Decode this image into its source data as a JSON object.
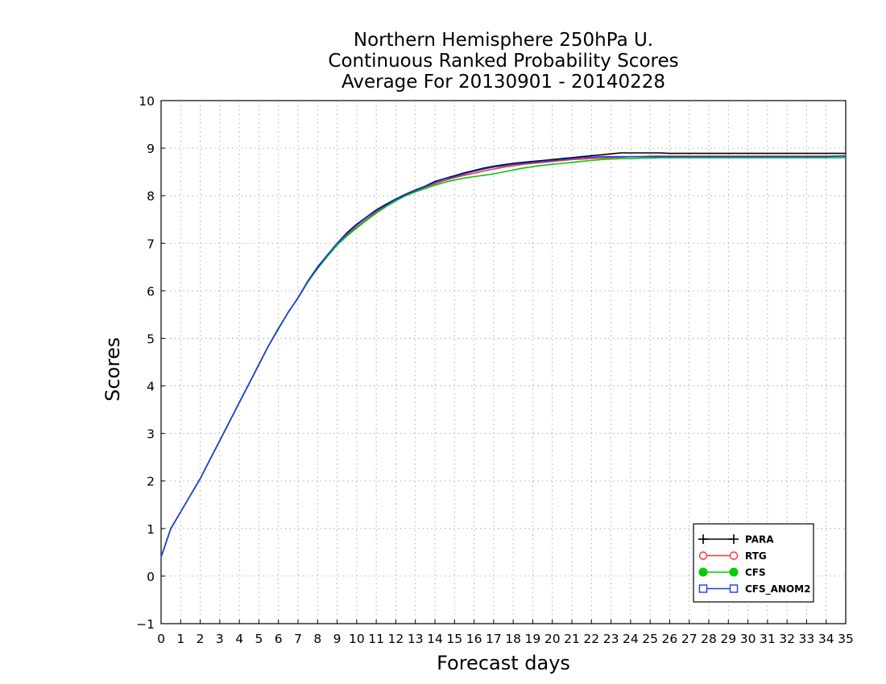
{
  "chart_data": {
    "type": "line",
    "title": [
      "Northern Hemisphere 250hPa U.",
      "Continuous Ranked Probability Scores",
      "Average For 20130901 - 20140228"
    ],
    "xlabel": "Forecast days",
    "ylabel": "Scores",
    "xlim": [
      0,
      35
    ],
    "ylim": [
      -1,
      10
    ],
    "xticks": [
      0,
      1,
      2,
      3,
      4,
      5,
      6,
      7,
      8,
      9,
      10,
      11,
      12,
      13,
      14,
      15,
      16,
      17,
      18,
      19,
      20,
      21,
      22,
      23,
      24,
      25,
      26,
      27,
      28,
      29,
      30,
      31,
      32,
      33,
      34,
      35
    ],
    "yticks": [
      -1,
      0,
      1,
      2,
      3,
      4,
      5,
      6,
      7,
      8,
      9,
      10
    ],
    "ytick_labels": [
      "−1",
      "0",
      "1",
      "2",
      "3",
      "4",
      "5",
      "6",
      "7",
      "8",
      "9",
      "10"
    ],
    "grid": true,
    "legend_position": "bottom-right",
    "x": [
      0,
      0.5,
      1,
      1.5,
      2,
      2.5,
      3,
      3.5,
      4,
      4.5,
      5,
      5.5,
      6,
      6.5,
      7,
      7.5,
      8,
      8.5,
      9,
      9.5,
      10,
      10.5,
      11,
      11.5,
      12,
      12.5,
      13,
      13.5,
      14,
      14.5,
      15,
      15.5,
      16,
      16.5,
      17,
      17.5,
      18,
      18.5,
      19,
      19.5,
      20,
      20.5,
      21,
      21.5,
      22,
      22.5,
      23,
      23.5,
      24,
      24.5,
      25,
      25.5,
      26,
      26.5,
      27,
      27.5,
      28,
      28.5,
      29,
      29.5,
      30,
      30.5,
      31,
      31.5,
      32,
      32.5,
      33,
      33.5,
      34,
      34.5,
      35
    ],
    "series": [
      {
        "name": "PARA",
        "color": "#000000",
        "marker": "plus",
        "values": [
          0.4,
          1.0,
          1.35,
          1.7,
          2.05,
          2.45,
          2.85,
          3.25,
          3.65,
          4.05,
          4.45,
          4.85,
          5.2,
          5.55,
          5.85,
          6.2,
          6.5,
          6.75,
          7.0,
          7.22,
          7.4,
          7.55,
          7.7,
          7.82,
          7.93,
          8.03,
          8.12,
          8.2,
          8.3,
          8.36,
          8.42,
          8.48,
          8.53,
          8.58,
          8.62,
          8.65,
          8.68,
          8.7,
          8.72,
          8.74,
          8.76,
          8.78,
          8.8,
          8.82,
          8.84,
          8.86,
          8.88,
          8.9,
          8.9,
          8.9,
          8.9,
          8.9,
          8.89,
          8.89,
          8.89,
          8.89,
          8.89,
          8.89,
          8.89,
          8.89,
          8.89,
          8.89,
          8.89,
          8.89,
          8.89,
          8.89,
          8.89,
          8.89,
          8.89,
          8.89,
          8.89
        ]
      },
      {
        "name": "RTG",
        "color": "#ff3030",
        "marker": "open-circle",
        "values": [
          0.4,
          1.0,
          1.35,
          1.7,
          2.05,
          2.45,
          2.85,
          3.25,
          3.65,
          4.05,
          4.45,
          4.85,
          5.2,
          5.55,
          5.85,
          6.18,
          6.48,
          6.73,
          6.97,
          7.17,
          7.34,
          7.5,
          7.65,
          7.78,
          7.9,
          8.0,
          8.09,
          8.18,
          8.25,
          8.32,
          8.38,
          8.43,
          8.47,
          8.52,
          8.56,
          8.6,
          8.63,
          8.66,
          8.68,
          8.7,
          8.72,
          8.74,
          8.76,
          8.77,
          8.78,
          8.79,
          8.8,
          8.81,
          8.82,
          8.82,
          8.83,
          8.83,
          8.83,
          8.83,
          8.83,
          8.83,
          8.83,
          8.83,
          8.83,
          8.83,
          8.83,
          8.83,
          8.83,
          8.83,
          8.83,
          8.83,
          8.83,
          8.83,
          8.83,
          8.83,
          8.84
        ]
      },
      {
        "name": "CFS",
        "color": "#00cc00",
        "marker": "filled-circle",
        "values": [
          0.4,
          1.0,
          1.35,
          1.7,
          2.05,
          2.45,
          2.85,
          3.25,
          3.65,
          4.05,
          4.45,
          4.85,
          5.22,
          5.55,
          5.85,
          6.18,
          6.47,
          6.72,
          6.96,
          7.15,
          7.32,
          7.48,
          7.63,
          7.77,
          7.89,
          8.0,
          8.08,
          8.15,
          8.22,
          8.28,
          8.33,
          8.37,
          8.4,
          8.43,
          8.46,
          8.5,
          8.54,
          8.58,
          8.61,
          8.64,
          8.66,
          8.68,
          8.7,
          8.72,
          8.74,
          8.76,
          8.77,
          8.78,
          8.78,
          8.79,
          8.79,
          8.8,
          8.8,
          8.8,
          8.8,
          8.8,
          8.8,
          8.8,
          8.8,
          8.8,
          8.8,
          8.8,
          8.8,
          8.8,
          8.8,
          8.8,
          8.8,
          8.8,
          8.8,
          8.8,
          8.8
        ]
      },
      {
        "name": "CFS_ANOM2",
        "color": "#1c3cf0",
        "marker": "open-square",
        "values": [
          0.4,
          1.0,
          1.35,
          1.7,
          2.05,
          2.45,
          2.85,
          3.25,
          3.65,
          4.05,
          4.45,
          4.85,
          5.2,
          5.55,
          5.85,
          6.2,
          6.48,
          6.75,
          7.0,
          7.2,
          7.38,
          7.54,
          7.68,
          7.8,
          7.92,
          8.02,
          8.11,
          8.19,
          8.28,
          8.35,
          8.4,
          8.46,
          8.51,
          8.56,
          8.6,
          8.63,
          8.66,
          8.68,
          8.7,
          8.72,
          8.74,
          8.76,
          8.78,
          8.8,
          8.81,
          8.82,
          8.82,
          8.82,
          8.82,
          8.82,
          8.82,
          8.82,
          8.82,
          8.82,
          8.82,
          8.82,
          8.82,
          8.82,
          8.82,
          8.82,
          8.82,
          8.82,
          8.82,
          8.82,
          8.82,
          8.82,
          8.82,
          8.82,
          8.82,
          8.83,
          8.83
        ]
      }
    ]
  }
}
